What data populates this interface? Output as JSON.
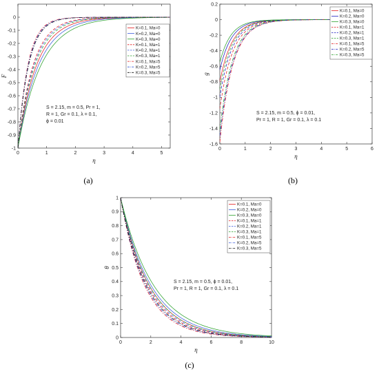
{
  "chart_data": [
    {
      "type": "line",
      "panel_label": "(a)",
      "xlabel": "η",
      "ylabel": "F",
      "xlim": [
        0,
        5.3
      ],
      "ylim": [
        -1,
        0.1
      ],
      "xticks": [
        0,
        1,
        2,
        3,
        4,
        5
      ],
      "yticks": [
        0,
        -0.1,
        -0.2,
        -0.3,
        -0.4,
        -0.5,
        -0.6,
        -0.7,
        -0.8,
        -0.9,
        -1
      ],
      "xtick_labels": [
        "0",
        "1",
        "2",
        "3",
        "4",
        "5"
      ],
      "ytick_labels": [
        "0",
        "-0.1",
        "-0.2",
        "-0.3",
        "-0.4",
        "-0.5",
        "-0.6",
        "-0.7",
        "-0.8",
        "-0.9",
        "-1"
      ],
      "legend_position": "top-right",
      "annotation_lines": [
        "S = 2.15, m = 0.5, Pr = 1,",
        "R = 1, Gr = 0.1, λ = 0.1,",
        "ϕ = 0.01"
      ],
      "curve_form": "y = y0 * exp(-k * x)",
      "series": [
        {
          "name": "K=0.1, Ma=0",
          "color": "#e41a1c",
          "dash": "solid",
          "y0": -1.0,
          "k": 1.55
        },
        {
          "name": "K=0.2, Ma=0",
          "color": "#3b5bdb",
          "dash": "solid",
          "y0": -1.0,
          "k": 1.4
        },
        {
          "name": "K=0.3, Ma=0",
          "color": "#2ca02c",
          "dash": "solid",
          "y0": -1.0,
          "k": 1.25
        },
        {
          "name": "K=0.1, Ma=1",
          "color": "#e41a1c",
          "dash": "dashed",
          "y0": -1.0,
          "k": 1.9
        },
        {
          "name": "K=0.2, Ma=1",
          "color": "#3b5bdb",
          "dash": "dashed",
          "y0": -1.0,
          "k": 1.8
        },
        {
          "name": "K=0.3, Ma=1",
          "color": "#2ca02c",
          "dash": "dashed",
          "y0": -1.0,
          "k": 1.7
        },
        {
          "name": "K=0.1, Ma=5",
          "color": "#e41a1c",
          "dash": "dashdot",
          "y0": -1.0,
          "k": 2.9
        },
        {
          "name": "K=0.2, Ma=5",
          "color": "#3b5bdb",
          "dash": "dashdot",
          "y0": -1.0,
          "k": 2.8
        },
        {
          "name": "K=0.3, Ma=5",
          "color": "#111111",
          "dash": "dashdot",
          "y0": -1.0,
          "k": 2.7
        }
      ]
    },
    {
      "type": "line",
      "panel_label": "(b)",
      "xlabel": "η",
      "ylabel": "g",
      "xlim": [
        0,
        6
      ],
      "ylim": [
        -1.6,
        0.2
      ],
      "xticks": [
        0,
        1,
        2,
        3,
        4,
        5,
        6
      ],
      "yticks": [
        0.2,
        0,
        -0.2,
        -0.4,
        -0.6,
        -0.8,
        -1,
        -1.2,
        -1.4,
        -1.6
      ],
      "xtick_labels": [
        "0",
        "1",
        "2",
        "3",
        "4",
        "5",
        "6"
      ],
      "ytick_labels": [
        "0.2",
        "0",
        "-0.2",
        "-0.4",
        "-0.6",
        "-0.8",
        "-1",
        "-1.2",
        "-1.4",
        "-1.6"
      ],
      "legend_position": "top-right",
      "annotation_lines": [
        "S = 2.15, m = 0.5, ϕ = 0.01,",
        "Pr = 1, R = 1, Gr = 0.1, λ = 0.1"
      ],
      "curve_form": "y = y0 * exp(-k * x)",
      "series": [
        {
          "name": "K=0.1, Ma=0",
          "color": "#e41a1c",
          "dash": "solid",
          "y0": -0.8,
          "k": 2.1
        },
        {
          "name": "K=0.2, Ma=0",
          "color": "#1f1fbf",
          "dash": "solid",
          "y0": -0.65,
          "k": 2.2
        },
        {
          "name": "K=0.3, Ma=0",
          "color": "#2ca02c",
          "dash": "solid",
          "y0": -0.55,
          "k": 2.3
        },
        {
          "name": "K=0.1, Ma=1",
          "color": "#e41a1c",
          "dash": "dashed",
          "y0": -1.15,
          "k": 2.0
        },
        {
          "name": "K=0.2, Ma=1",
          "color": "#1f1fbf",
          "dash": "dashed",
          "y0": -1.0,
          "k": 2.05
        },
        {
          "name": "K=0.3, Ma=1",
          "color": "#2ca02c",
          "dash": "dashed",
          "y0": -0.9,
          "k": 2.1
        },
        {
          "name": "K=0.1, Ma=5",
          "color": "#e41a1c",
          "dash": "dashdot",
          "y0": -1.58,
          "k": 1.95
        },
        {
          "name": "K=0.2, Ma=5",
          "color": "#1f1fbf",
          "dash": "dashdot",
          "y0": -1.5,
          "k": 1.95
        },
        {
          "name": "K=0.3, Ma=5",
          "color": "#2ca02c",
          "dash": "dashdot",
          "y0": -1.42,
          "k": 2.0
        }
      ]
    },
    {
      "type": "line",
      "panel_label": "(c)",
      "xlabel": "η",
      "ylabel": "θ",
      "xlim": [
        0,
        10
      ],
      "ylim": [
        0,
        1
      ],
      "xticks": [
        0,
        2,
        4,
        6,
        8,
        10
      ],
      "yticks": [
        0,
        0.1,
        0.2,
        0.3,
        0.4,
        0.5,
        0.6,
        0.7,
        0.8,
        0.9,
        1
      ],
      "xtick_labels": [
        "0",
        "2",
        "4",
        "6",
        "8",
        "10"
      ],
      "ytick_labels": [
        "0",
        "0.1",
        "0.2",
        "0.3",
        "0.4",
        "0.5",
        "0.6",
        "0.7",
        "0.8",
        "0.9",
        "1"
      ],
      "legend_position": "top-right",
      "annotation_lines": [
        "S = 2.15, m = 0.5, ϕ = 0.01,",
        "Pr = 1, R = 1, Gr = 0.1, λ = 0.1"
      ],
      "curve_form": "y = y0 * exp(-k * x)",
      "series": [
        {
          "name": "K=0.1, Ma=0",
          "color": "#e41a1c",
          "dash": "solid",
          "y0": 1.0,
          "k": 0.52
        },
        {
          "name": "K=0.2, Ma=0",
          "color": "#3b5bdb",
          "dash": "solid",
          "y0": 1.0,
          "k": 0.49
        },
        {
          "name": "K=0.3, Ma=0",
          "color": "#2ca02c",
          "dash": "solid",
          "y0": 1.0,
          "k": 0.45
        },
        {
          "name": "K=0.1, Ma=1",
          "color": "#e41a1c",
          "dash": "dashed",
          "y0": 1.0,
          "k": 0.56
        },
        {
          "name": "K=0.2, Ma=1",
          "color": "#3b5bdb",
          "dash": "dashed",
          "y0": 1.0,
          "k": 0.54
        },
        {
          "name": "K=0.3, Ma=1",
          "color": "#2ca02c",
          "dash": "dashed",
          "y0": 1.0,
          "k": 0.52
        },
        {
          "name": "K=0.1, Ma=5",
          "color": "#e41a1c",
          "dash": "dashdot",
          "y0": 1.0,
          "k": 0.62
        },
        {
          "name": "K=0.2, Ma=5",
          "color": "#3b5bdb",
          "dash": "dashdot",
          "y0": 1.0,
          "k": 0.6
        },
        {
          "name": "K=0.3, Ma=5",
          "color": "#111111",
          "dash": "dashdot",
          "y0": 1.0,
          "k": 0.58
        }
      ]
    }
  ]
}
